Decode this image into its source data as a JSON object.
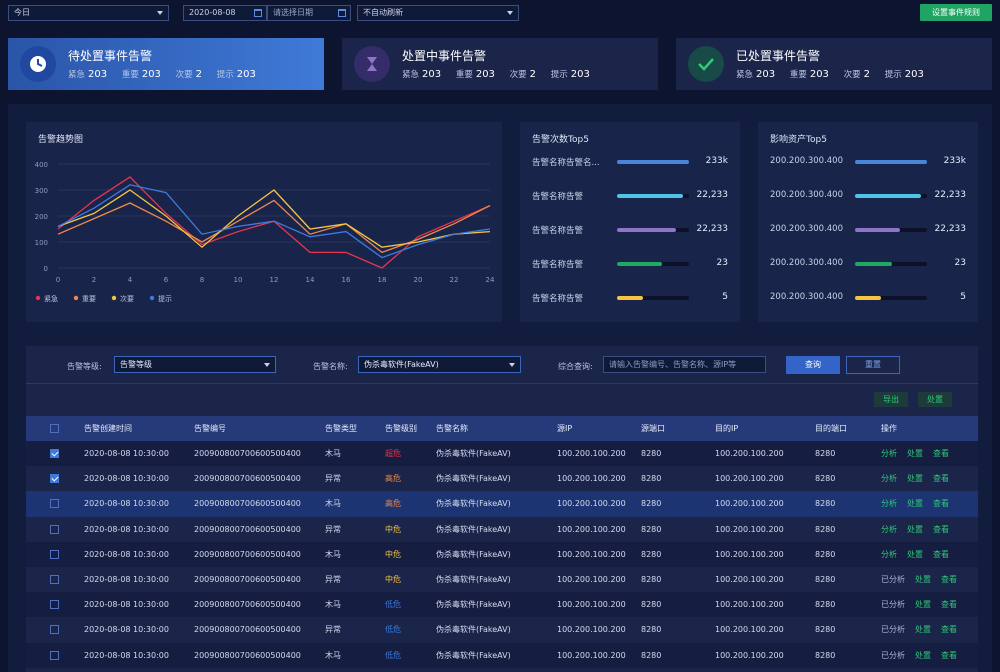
{
  "topbar": {
    "range_select": "今日",
    "date_start": "2020-08-08",
    "date_end_placeholder": "请选择日期",
    "refresh_select": "不自动刷新",
    "rule_button": "设置事件规则"
  },
  "cards": [
    {
      "title": "待处置事件告警",
      "labels": [
        "紧急",
        "重要",
        "次要",
        "提示"
      ],
      "values": [
        "203",
        "203",
        "2",
        "203"
      ]
    },
    {
      "title": "处置中事件告警",
      "labels": [
        "紧急",
        "重要",
        "次要",
        "提示"
      ],
      "values": [
        "203",
        "203",
        "2",
        "203"
      ]
    },
    {
      "title": "已处置事件告警",
      "labels": [
        "紧急",
        "重要",
        "次要",
        "提示"
      ],
      "values": [
        "203",
        "203",
        "2",
        "203"
      ]
    }
  ],
  "trend": {
    "title": "告警趋势图",
    "chart_data": {
      "type": "line",
      "x": [
        0,
        2,
        4,
        6,
        8,
        10,
        12,
        14,
        16,
        18,
        20,
        22,
        24
      ],
      "ylim": [
        0,
        400
      ],
      "yticks": [
        0,
        100,
        200,
        300,
        400
      ],
      "series": [
        {
          "name": "紧急",
          "color": "#e8344e",
          "values": [
            150,
            260,
            350,
            210,
            90,
            140,
            180,
            60,
            60,
            0,
            120,
            180,
            240
          ]
        },
        {
          "name": "重要",
          "color": "#f08a4b",
          "values": [
            130,
            190,
            250,
            180,
            100,
            180,
            260,
            130,
            170,
            60,
            110,
            170,
            240
          ]
        },
        {
          "name": "次要",
          "color": "#f5c542",
          "values": [
            160,
            210,
            300,
            200,
            80,
            200,
            300,
            150,
            170,
            80,
            100,
            130,
            140
          ]
        },
        {
          "name": "提示",
          "color": "#3d7be0",
          "values": [
            160,
            230,
            320,
            290,
            130,
            160,
            180,
            120,
            140,
            40,
            90,
            130,
            150
          ]
        }
      ]
    }
  },
  "top_alerts": {
    "title": "告警次数Top5",
    "rows": [
      {
        "name": "告警名称告警名...",
        "value": "233k",
        "pct": 1.0,
        "color": "#4a86d8"
      },
      {
        "name": "告警名称告警",
        "value": "22,233",
        "pct": 0.92,
        "color": "#4fc3e8"
      },
      {
        "name": "告警名称告警",
        "value": "22,233",
        "pct": 0.82,
        "color": "#8f74c9"
      },
      {
        "name": "告警名称告警",
        "value": "23",
        "pct": 0.62,
        "color": "#1faa64"
      },
      {
        "name": "告警名称告警",
        "value": "5",
        "pct": 0.36,
        "color": "#f5c542"
      }
    ]
  },
  "top_assets": {
    "title": "影响资产Top5",
    "rows": [
      {
        "name": "200.200.300.400",
        "value": "233k",
        "pct": 1.0,
        "color": "#4a86d8"
      },
      {
        "name": "200.200.300.400",
        "value": "22,233",
        "pct": 0.92,
        "color": "#4fc3e8"
      },
      {
        "name": "200.200.300.400",
        "value": "22,233",
        "pct": 0.62,
        "color": "#8f74c9"
      },
      {
        "name": "200.200.300.400",
        "value": "23",
        "pct": 0.52,
        "color": "#1faa64"
      },
      {
        "name": "200.200.300.400",
        "value": "5",
        "pct": 0.36,
        "color": "#f5c542"
      }
    ]
  },
  "filters": {
    "level_label": "告警等级:",
    "level_value": "告警等级",
    "name_label": "告警名称:",
    "name_value": "伪杀毒软件(FakeAV)",
    "query_label": "综合查询:",
    "query_placeholder": "请输入告警编号、告警名称、源IP等",
    "search_button": "查询",
    "reset_button": "重置",
    "export_button": "导出",
    "handle_button": "处置"
  },
  "table": {
    "headers": [
      "",
      "告警创建时间",
      "告警编号",
      "告警类型",
      "告警级别",
      "告警名称",
      "源IP",
      "源端口",
      "目的IP",
      "目的端口",
      "操作"
    ],
    "rows": [
      {
        "checked": true,
        "time": "2020-08-08 10:30:00",
        "id": "20090080070060050040​0",
        "type": "木马",
        "level": "超危",
        "level_color": "#e8344e",
        "name": "伪杀毒软件(FakeAV)",
        "src_ip": "100.200.100.200",
        "src_port": "8280",
        "dst_ip": "100.200.100.200",
        "dst_port": "8280",
        "ops": [
          "分析",
          "处置",
          "查看"
        ]
      },
      {
        "checked": true,
        "time": "2020-08-08 10:30:00",
        "id": "200900800700600500400",
        "type": "异常",
        "level": "高危",
        "level_color": "#f08a4b",
        "name": "伪杀毒软件(FakeAV)",
        "src_ip": "100.200.100.200",
        "src_port": "8280",
        "dst_ip": "100.200.100.200",
        "dst_port": "8280",
        "ops": [
          "分析",
          "处置",
          "查看"
        ]
      },
      {
        "checked": true,
        "time": "2020-08-08 10:30:00",
        "id": "200900800700600500400",
        "type": "木马",
        "level": "高危",
        "level_color": "#f08a4b",
        "name": "伪杀毒软件(FakeAV)",
        "src_ip": "100.200.100.200",
        "src_port": "8280",
        "dst_ip": "100.200.100.200",
        "dst_port": "8280",
        "ops": [
          "分析",
          "处置",
          "查看"
        ]
      },
      {
        "checked": false,
        "time": "2020-08-08 10:30:00",
        "id": "200900800700600500400",
        "type": "异常",
        "level": "中危",
        "level_color": "#f5c542",
        "name": "伪杀毒软件(FakeAV)",
        "src_ip": "100.200.100.200",
        "src_port": "8280",
        "dst_ip": "100.200.100.200",
        "dst_port": "8280",
        "ops": [
          "分析",
          "处置",
          "查看"
        ]
      },
      {
        "checked": false,
        "time": "2020-08-08 10:30:00",
        "id": "200900800700600500400",
        "type": "木马",
        "level": "中危",
        "level_color": "#f5c542",
        "name": "伪杀毒软件(FakeAV)",
        "src_ip": "100.200.100.200",
        "src_port": "8280",
        "dst_ip": "100.200.100.200",
        "dst_port": "8280",
        "ops": [
          "分析",
          "处置",
          "查看"
        ]
      },
      {
        "checked": false,
        "time": "2020-08-08 10:30:00",
        "id": "200900800700600500400",
        "type": "异常",
        "level": "中危",
        "level_color": "#f5c542",
        "name": "伪杀毒软件(FakeAV)",
        "src_ip": "100.200.100.200",
        "src_port": "8280",
        "dst_ip": "100.200.100.200",
        "dst_port": "8280",
        "ops": [
          "已分析",
          "处置",
          "查看"
        ]
      },
      {
        "checked": false,
        "time": "2020-08-08 10:30:00",
        "id": "200900800700600500400",
        "type": "木马",
        "level": "低危",
        "level_color": "#3d7be0",
        "name": "伪杀毒软件(FakeAV)",
        "src_ip": "100.200.100.200",
        "src_port": "8280",
        "dst_ip": "100.200.100.200",
        "dst_port": "8280",
        "ops": [
          "已分析",
          "处置",
          "查看"
        ]
      },
      {
        "checked": false,
        "time": "2020-08-08 10:30:00",
        "id": "200900800700600500400",
        "type": "异常",
        "level": "低危",
        "level_color": "#3d7be0",
        "name": "伪杀毒软件(FakeAV)",
        "src_ip": "100.200.100.200",
        "src_port": "8280",
        "dst_ip": "100.200.100.200",
        "dst_port": "8280",
        "ops": [
          "已分析",
          "处置",
          "查看"
        ]
      },
      {
        "checked": false,
        "time": "2020-08-08 10:30:00",
        "id": "200900800700600500400",
        "type": "木马",
        "level": "低危",
        "level_color": "#3d7be0",
        "name": "伪杀毒软件(FakeAV)",
        "src_ip": "100.200.100.200",
        "src_port": "8280",
        "dst_ip": "100.200.100.200",
        "dst_port": "8280",
        "ops": [
          "已分析",
          "处置",
          "查看"
        ]
      }
    ]
  }
}
